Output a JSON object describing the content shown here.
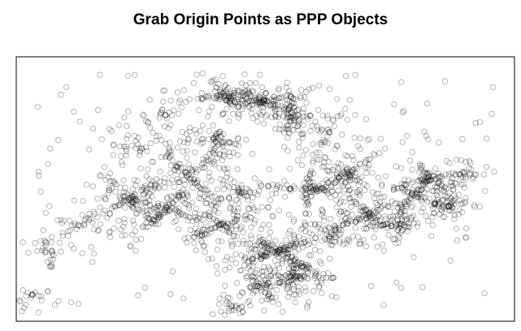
{
  "chart_data": {
    "type": "scatter",
    "title": "Grab Origin Points as PPP Objects",
    "marker": "open-circle",
    "point_color": "#000000",
    "background_color": "#ffffff",
    "frame_color": "#000000",
    "axes_shown": false,
    "grid": false,
    "legend": "none",
    "xlim": [
      0,
      100
    ],
    "ylim": [
      0,
      100
    ],
    "density_clusters": [
      {
        "x": 42,
        "y": 86,
        "sx": 5,
        "sy": 3,
        "n": 120
      },
      {
        "x": 50,
        "y": 84,
        "sx": 5,
        "sy": 3,
        "n": 110
      },
      {
        "x": 55,
        "y": 78,
        "sx": 4,
        "sy": 4,
        "n": 90
      },
      {
        "x": 34,
        "y": 56,
        "sx": 5,
        "sy": 7,
        "n": 120
      },
      {
        "x": 40,
        "y": 68,
        "sx": 4,
        "sy": 5,
        "n": 80
      },
      {
        "x": 22,
        "y": 46,
        "sx": 4,
        "sy": 6,
        "n": 120
      },
      {
        "x": 30,
        "y": 42,
        "sx": 6,
        "sy": 6,
        "n": 120
      },
      {
        "x": 41,
        "y": 36,
        "sx": 6,
        "sy": 6,
        "n": 130
      },
      {
        "x": 52,
        "y": 26,
        "sx": 6,
        "sy": 5,
        "n": 200
      },
      {
        "x": 56,
        "y": 16,
        "sx": 4,
        "sy": 5,
        "n": 110
      },
      {
        "x": 49,
        "y": 12,
        "sx": 4,
        "sy": 4,
        "n": 80
      },
      {
        "x": 59,
        "y": 50,
        "sx": 5,
        "sy": 7,
        "n": 120
      },
      {
        "x": 66,
        "y": 56,
        "sx": 5,
        "sy": 6,
        "n": 110
      },
      {
        "x": 71,
        "y": 40,
        "sx": 5,
        "sy": 6,
        "n": 110
      },
      {
        "x": 80,
        "y": 48,
        "sx": 4,
        "sy": 5,
        "n": 100
      },
      {
        "x": 84,
        "y": 54,
        "sx": 4,
        "sy": 4,
        "n": 90
      },
      {
        "x": 87,
        "y": 43,
        "sx": 3,
        "sy": 4,
        "n": 60
      },
      {
        "x": 78,
        "y": 36,
        "sx": 4,
        "sy": 4,
        "n": 60
      },
      {
        "x": 64,
        "y": 33,
        "sx": 4,
        "sy": 5,
        "n": 70
      },
      {
        "x": 45,
        "y": 48,
        "sx": 5,
        "sy": 5,
        "n": 60
      },
      {
        "x": 12,
        "y": 36,
        "sx": 5,
        "sy": 4,
        "n": 45
      },
      {
        "x": 6,
        "y": 26,
        "sx": 3,
        "sy": 4,
        "n": 30
      },
      {
        "x": 2,
        "y": 10,
        "sx": 2,
        "sy": 4,
        "n": 18
      },
      {
        "x": 44,
        "y": 4,
        "sx": 3,
        "sy": 2,
        "n": 25
      },
      {
        "x": 92,
        "y": 56,
        "sx": 3,
        "sy": 3,
        "n": 25
      },
      {
        "x": 63,
        "y": 72,
        "sx": 4,
        "sy": 4,
        "n": 40
      },
      {
        "x": 30,
        "y": 78,
        "sx": 5,
        "sy": 5,
        "n": 30
      },
      {
        "x": 24,
        "y": 66,
        "sx": 5,
        "sy": 5,
        "n": 35
      }
    ],
    "scatter_noise": {
      "n": 160,
      "x": [
        3,
        97
      ],
      "y": [
        5,
        95
      ]
    },
    "seed": 7
  }
}
